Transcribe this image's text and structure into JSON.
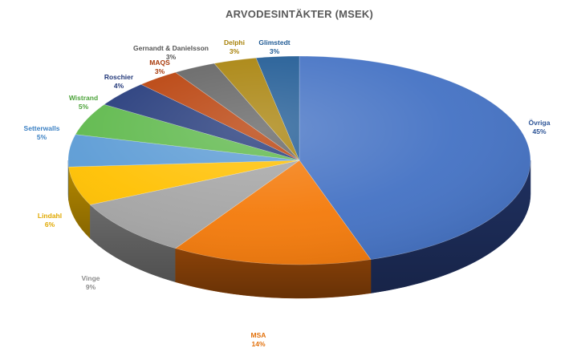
{
  "chart_data": {
    "type": "pie",
    "variant": "3d",
    "title": "ARVODESINTÄKTER (MSEK)",
    "legend": "none",
    "slices": [
      {
        "label": "Övriga",
        "value": 45,
        "pct_label": "45%",
        "color": "#4472C4",
        "side_color": "#1F3060",
        "label_color": "#2E5597"
      },
      {
        "label": "MSA",
        "value": 14,
        "pct_label": "14%",
        "color": "#F47A0A",
        "side_color": "#8A4208",
        "label_color": "#E2700A"
      },
      {
        "label": "Vinge",
        "value": 9,
        "pct_label": "9%",
        "color": "#A5A5A5",
        "side_color": "#6A6A6A",
        "label_color": "#8C8C8C"
      },
      {
        "label": "Lindahl",
        "value": 6,
        "pct_label": "6%",
        "color": "#FFC000",
        "side_color": "#B38700",
        "label_color": "#E0A800"
      },
      {
        "label": "Setterwalls",
        "value": 5,
        "pct_label": "5%",
        "color": "#5B9BD5",
        "side_color": "#2F5F8A",
        "label_color": "#3E82C4"
      },
      {
        "label": "Wistrand",
        "value": 5,
        "pct_label": "5%",
        "color": "#5DB84A",
        "side_color": "#336B28",
        "label_color": "#4CA33A"
      },
      {
        "label": "Roschier",
        "value": 4,
        "pct_label": "4%",
        "color": "#23397A",
        "side_color": "#111D40",
        "label_color": "#23397A"
      },
      {
        "label": "MAQS",
        "value": 3,
        "pct_label": "3%",
        "color": "#B83F08",
        "side_color": "#6A2404",
        "label_color": "#A8390A"
      },
      {
        "label": "Gernandt & Danielsson",
        "value": 3,
        "pct_label": "3%",
        "color": "#636363",
        "side_color": "#3A3A3A",
        "label_color": "#555555"
      },
      {
        "label": "Delphi",
        "value": 3,
        "pct_label": "3%",
        "color": "#A8820A",
        "side_color": "#624B05",
        "label_color": "#A8820A"
      },
      {
        "label": "Glimstedt",
        "value": 3,
        "pct_label": "3%",
        "color": "#1F5A94",
        "side_color": "#0F3054",
        "label_color": "#1F5A94"
      }
    ]
  }
}
